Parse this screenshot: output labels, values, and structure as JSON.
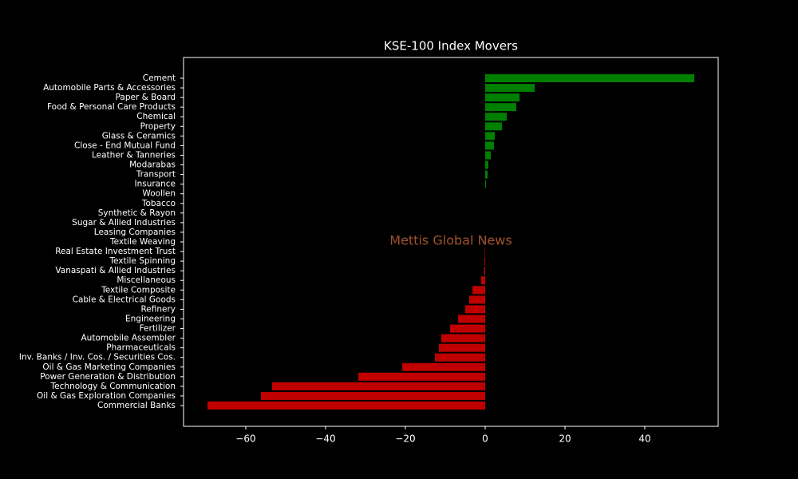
{
  "chart_data": {
    "type": "barh",
    "title": "KSE-100 Index Movers",
    "annotation": "Mettis Global News",
    "categories": [
      "Cement",
      "Automobile Parts & Accessories",
      "Paper & Board",
      "Food & Personal Care Products",
      "Chemical",
      "Property",
      "Glass & Ceramics",
      "Close - End Mutual Fund",
      "Leather & Tanneries",
      "Modarabas",
      "Transport",
      "Insurance",
      "Woollen",
      "Tobacco",
      "Synthetic & Rayon",
      "Sugar & Allied Industries",
      "Leasing Companies",
      "Textile Weaving",
      "Real Estate Investment Trust",
      "Textile Spinning",
      "Vanaspati & Allied Industries",
      "Miscellaneous",
      "Textile Composite",
      "Cable & Electrical Goods",
      "Refinery",
      "Engineering",
      "Fertilizer",
      "Automobile Assembler",
      "Pharmaceuticals",
      "Inv. Banks / Inv. Cos. / Securities Cos.",
      "Oil & Gas Marketing Companies",
      "Power Generation & Distribution",
      "Technology & Communication",
      "Oil & Gas Exploration Companies",
      "Commercial Banks"
    ],
    "values": [
      52.4,
      12.4,
      8.6,
      7.8,
      5.4,
      4.2,
      2.4,
      2.2,
      1.4,
      0.8,
      0.6,
      0.2,
      0,
      0,
      0,
      0,
      0,
      0,
      -0.1,
      -0.2,
      -0.3,
      -1.0,
      -3.2,
      -4.0,
      -5.0,
      -6.8,
      -8.8,
      -11.0,
      -11.6,
      -12.6,
      -20.8,
      -31.8,
      -53.4,
      -56.2,
      -69.6
    ],
    "colors": {
      "positive": "#008000",
      "negative": "#c00000"
    },
    "xlim": [
      -75.6,
      58.4
    ],
    "xticks": [
      {
        "value": -60,
        "label": "−60"
      },
      {
        "value": -40,
        "label": "−40"
      },
      {
        "value": -20,
        "label": "−20"
      },
      0,
      20,
      40
    ]
  }
}
